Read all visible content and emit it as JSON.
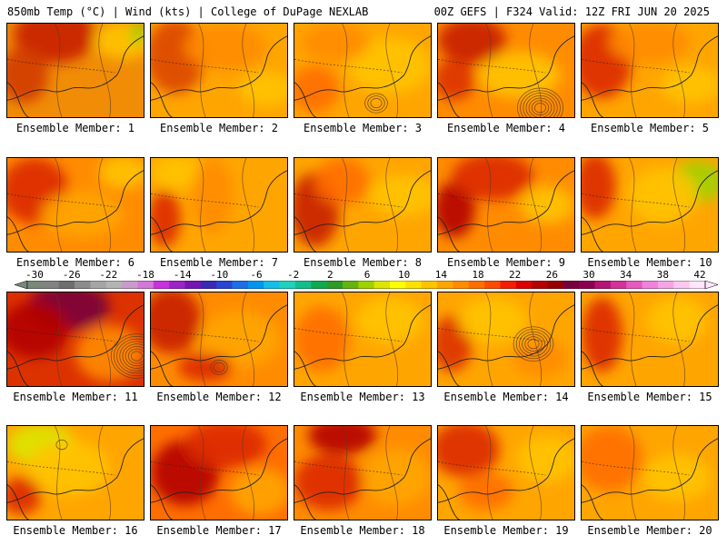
{
  "header": {
    "left": "850mb Temp (°C) | Wind (kts) | College of DuPage NEXLAB",
    "right": "00Z GEFS | F324 Valid: 12Z FRI JUN 20 2025"
  },
  "colorbar": {
    "labels": [
      "-30",
      "-26",
      "-22",
      "-18",
      "-14",
      "-10",
      "-6",
      "-2",
      "2",
      "6",
      "10",
      "14",
      "18",
      "22",
      "26",
      "30",
      "34",
      "38",
      "42"
    ],
    "colors": [
      "#7a877a",
      "#828282",
      "#6e6e6e",
      "#8c8c8c",
      "#a5a5a5",
      "#b4b4b4",
      "#c89bcd",
      "#d278d7",
      "#c832dc",
      "#9b23c8",
      "#7814b4",
      "#3c28b4",
      "#2846d2",
      "#1e6ee6",
      "#0096f0",
      "#14bee6",
      "#1ed2be",
      "#14be8c",
      "#0faa50",
      "#2d9b28",
      "#64b40f",
      "#a0d200",
      "#dce600",
      "#ffff00",
      "#ffe100",
      "#ffc300",
      "#ffa500",
      "#ff8c00",
      "#ff6e00",
      "#ff4b00",
      "#f51e00",
      "#dc0000",
      "#b40000",
      "#960000",
      "#78003c",
      "#8c0050",
      "#b41478",
      "#d2329b",
      "#e65abe",
      "#f082dc",
      "#f5a5e6",
      "#fac8f0",
      "#ffe6fa"
    ]
  },
  "members": [
    {
      "label": "Ensemble Member: 1",
      "base": "#f08c05",
      "blobs": [
        [
          "#c81e00",
          0.35,
          0.12,
          0.3,
          0.3
        ],
        [
          "#d23c00",
          0.12,
          0.55,
          0.18,
          0.3
        ],
        [
          "#ffc300",
          0.85,
          0.18,
          0.22,
          0.2
        ],
        [
          "#a0d200",
          0.96,
          0.1,
          0.06,
          0.12
        ]
      ],
      "lows": []
    },
    {
      "label": "Ensemble Member: 2",
      "base": "#ffa500",
      "blobs": [
        [
          "#dc4600",
          0.18,
          0.35,
          0.22,
          0.4
        ],
        [
          "#ff8c00",
          0.55,
          0.25,
          0.3,
          0.25
        ],
        [
          "#ffc300",
          0.85,
          0.7,
          0.2,
          0.18
        ]
      ],
      "lows": []
    },
    {
      "label": "Ensemble Member: 3",
      "base": "#ffa500",
      "blobs": [
        [
          "#ff6e00",
          0.15,
          0.7,
          0.18,
          0.25
        ],
        [
          "#ffc300",
          0.7,
          0.45,
          0.3,
          0.3
        ],
        [
          "#ff8c00",
          0.3,
          0.2,
          0.25,
          0.2
        ]
      ],
      "lows": [
        [
          0.6,
          0.85,
          3
        ]
      ]
    },
    {
      "label": "Ensemble Member: 4",
      "base": "#ff8c00",
      "blobs": [
        [
          "#c81e00",
          0.25,
          0.18,
          0.25,
          0.25
        ],
        [
          "#ffc300",
          0.6,
          0.55,
          0.3,
          0.25
        ],
        [
          "#dc3200",
          0.12,
          0.6,
          0.15,
          0.22
        ]
      ],
      "lows": [
        [
          0.75,
          0.9,
          7
        ]
      ]
    },
    {
      "label": "Ensemble Member: 5",
      "base": "#ffa500",
      "blobs": [
        [
          "#dc2800",
          0.15,
          0.4,
          0.22,
          0.4
        ],
        [
          "#ff8c00",
          0.5,
          0.2,
          0.3,
          0.22
        ],
        [
          "#ffc300",
          0.8,
          0.65,
          0.22,
          0.2
        ]
      ],
      "lows": []
    },
    {
      "label": "Ensemble Member: 6",
      "base": "#ff8c00",
      "blobs": [
        [
          "#dc2800",
          0.2,
          0.35,
          0.25,
          0.35
        ],
        [
          "#ffc300",
          0.85,
          0.15,
          0.18,
          0.18
        ],
        [
          "#ffa500",
          0.55,
          0.6,
          0.3,
          0.25
        ]
      ],
      "lows": []
    },
    {
      "label": "Ensemble Member: 7",
      "base": "#ffa500",
      "blobs": [
        [
          "#dc2800",
          0.1,
          0.65,
          0.12,
          0.3
        ],
        [
          "#ffc300",
          0.2,
          0.15,
          0.2,
          0.18
        ],
        [
          "#ff8c00",
          0.45,
          0.4,
          0.15,
          0.4
        ]
      ],
      "lows": []
    },
    {
      "label": "Ensemble Member: 8",
      "base": "#ffa500",
      "blobs": [
        [
          "#c81e00",
          0.15,
          0.55,
          0.18,
          0.4
        ],
        [
          "#ff6e00",
          0.35,
          0.25,
          0.2,
          0.25
        ],
        [
          "#ffc300",
          0.8,
          0.4,
          0.25,
          0.22
        ]
      ],
      "lows": []
    },
    {
      "label": "Ensemble Member: 9",
      "base": "#ff8c00",
      "blobs": [
        [
          "#b40000",
          0.12,
          0.55,
          0.15,
          0.3
        ],
        [
          "#dc2800",
          0.4,
          0.2,
          0.3,
          0.25
        ],
        [
          "#ffc300",
          0.8,
          0.5,
          0.2,
          0.2
        ]
      ],
      "lows": []
    },
    {
      "label": "Ensemble Member: 10",
      "base": "#ffa500",
      "blobs": [
        [
          "#a0d200",
          0.85,
          0.25,
          0.2,
          0.22
        ],
        [
          "#dc2800",
          0.1,
          0.3,
          0.15,
          0.35
        ],
        [
          "#ffc300",
          0.6,
          0.4,
          0.25,
          0.3
        ]
      ],
      "lows": []
    },
    {
      "label": "Ensemble Member: 11",
      "base": "#dc3200",
      "blobs": [
        [
          "#78003c",
          0.45,
          0.15,
          0.3,
          0.25
        ],
        [
          "#b40000",
          0.2,
          0.4,
          0.25,
          0.3
        ],
        [
          "#ff8c00",
          0.75,
          0.65,
          0.25,
          0.3
        ]
      ],
      "lows": [
        [
          0.95,
          0.68,
          8
        ]
      ]
    },
    {
      "label": "Ensemble Member: 12",
      "base": "#ff8c00",
      "blobs": [
        [
          "#c81e00",
          0.15,
          0.3,
          0.22,
          0.35
        ],
        [
          "#ffa500",
          0.65,
          0.5,
          0.3,
          0.3
        ],
        [
          "#dc2800",
          0.4,
          0.8,
          0.2,
          0.15
        ]
      ],
      "lows": [
        [
          0.5,
          0.8,
          2
        ]
      ]
    },
    {
      "label": "Ensemble Member: 13",
      "base": "#ffa500",
      "blobs": [
        [
          "#ff6e00",
          0.2,
          0.5,
          0.2,
          0.35
        ],
        [
          "#ffc300",
          0.7,
          0.3,
          0.25,
          0.25
        ]
      ],
      "lows": []
    },
    {
      "label": "Ensemble Member: 14",
      "base": "#ffa500",
      "blobs": [
        [
          "#dc3200",
          0.1,
          0.55,
          0.15,
          0.3
        ],
        [
          "#ffc300",
          0.4,
          0.3,
          0.25,
          0.25
        ],
        [
          "#ff8c00",
          0.75,
          0.7,
          0.2,
          0.2
        ]
      ],
      "lows": [
        [
          0.7,
          0.55,
          6
        ]
      ]
    },
    {
      "label": "Ensemble Member: 15",
      "base": "#ffa500",
      "blobs": [
        [
          "#dc2800",
          0.15,
          0.45,
          0.15,
          0.4
        ],
        [
          "#ffc300",
          0.7,
          0.3,
          0.22,
          0.25
        ]
      ],
      "lows": []
    },
    {
      "label": "Ensemble Member: 16",
      "base": "#ffa500",
      "blobs": [
        [
          "#dce600",
          0.25,
          0.2,
          0.25,
          0.22
        ],
        [
          "#ffc300",
          0.45,
          0.45,
          0.3,
          0.3
        ],
        [
          "#dc2800",
          0.1,
          0.75,
          0.15,
          0.2
        ]
      ],
      "lows": [
        [
          0.4,
          0.2,
          1
        ]
      ]
    },
    {
      "label": "Ensemble Member: 17",
      "base": "#ff6e00",
      "blobs": [
        [
          "#b40000",
          0.25,
          0.5,
          0.25,
          0.35
        ],
        [
          "#dc2800",
          0.55,
          0.2,
          0.3,
          0.25
        ],
        [
          "#ffa500",
          0.8,
          0.7,
          0.22,
          0.25
        ]
      ],
      "lows": []
    },
    {
      "label": "Ensemble Member: 18",
      "base": "#ff8c00",
      "blobs": [
        [
          "#b40000",
          0.35,
          0.1,
          0.25,
          0.2
        ],
        [
          "#dc2800",
          0.25,
          0.6,
          0.25,
          0.3
        ],
        [
          "#ffa500",
          0.75,
          0.55,
          0.25,
          0.3
        ]
      ],
      "lows": []
    },
    {
      "label": "Ensemble Member: 19",
      "base": "#ffa500",
      "blobs": [
        [
          "#dc2800",
          0.2,
          0.25,
          0.25,
          0.3
        ],
        [
          "#ff6e00",
          0.35,
          0.7,
          0.2,
          0.2
        ],
        [
          "#ffc300",
          0.8,
          0.35,
          0.22,
          0.25
        ]
      ],
      "lows": []
    },
    {
      "label": "Ensemble Member: 20",
      "base": "#ffa500",
      "blobs": [
        [
          "#ff6e00",
          0.2,
          0.35,
          0.25,
          0.35
        ],
        [
          "#ffc300",
          0.7,
          0.55,
          0.25,
          0.25
        ]
      ],
      "lows": []
    }
  ]
}
